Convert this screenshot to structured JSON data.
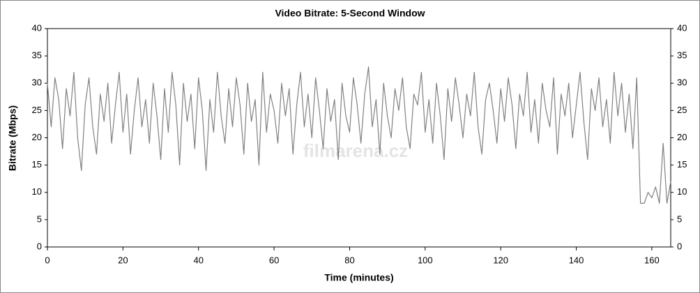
{
  "chart_data": {
    "type": "line",
    "title": "Video Bitrate: 5-Second Window",
    "x_label": "Time (minutes)",
    "y_label": "Bitrate (Mbps)",
    "watermark": "filmarena.cz",
    "xlim": [
      0,
      165
    ],
    "xticks": [
      0,
      20,
      40,
      60,
      80,
      100,
      120,
      140,
      160
    ],
    "ylim": [
      0,
      40
    ],
    "yticks": [
      0,
      5,
      10,
      15,
      20,
      25,
      30,
      35,
      40
    ],
    "grid": false,
    "x": [
      0,
      1,
      2,
      3,
      4,
      5,
      6,
      7,
      8,
      9,
      10,
      11,
      12,
      13,
      14,
      15,
      16,
      17,
      18,
      19,
      20,
      21,
      22,
      23,
      24,
      25,
      26,
      27,
      28,
      29,
      30,
      31,
      32,
      33,
      34,
      35,
      36,
      37,
      38,
      39,
      40,
      41,
      42,
      43,
      44,
      45,
      46,
      47,
      48,
      49,
      50,
      51,
      52,
      53,
      54,
      55,
      56,
      57,
      58,
      59,
      60,
      61,
      62,
      63,
      64,
      65,
      66,
      67,
      68,
      69,
      70,
      71,
      72,
      73,
      74,
      75,
      76,
      77,
      78,
      79,
      80,
      81,
      82,
      83,
      84,
      85,
      86,
      87,
      88,
      89,
      90,
      91,
      92,
      93,
      94,
      95,
      96,
      97,
      98,
      99,
      100,
      101,
      102,
      103,
      104,
      105,
      106,
      107,
      108,
      109,
      110,
      111,
      112,
      113,
      114,
      115,
      116,
      117,
      118,
      119,
      120,
      121,
      122,
      123,
      124,
      125,
      126,
      127,
      128,
      129,
      130,
      131,
      132,
      133,
      134,
      135,
      136,
      137,
      138,
      139,
      140,
      141,
      142,
      143,
      144,
      145,
      146,
      147,
      148,
      149,
      150,
      151,
      152,
      153,
      154,
      155,
      156,
      157,
      158,
      159,
      160,
      161,
      162,
      163,
      164,
      165
    ],
    "series": [
      {
        "color": "#808080",
        "values": [
          30,
          22,
          31,
          27,
          18,
          29,
          24,
          32,
          20,
          14,
          26,
          31,
          22,
          17,
          28,
          23,
          30,
          19,
          26,
          32,
          21,
          28,
          17,
          25,
          31,
          22,
          27,
          19,
          30,
          24,
          16,
          29,
          21,
          32,
          26,
          15,
          30,
          23,
          28,
          18,
          31,
          25,
          14,
          27,
          21,
          32,
          24,
          19,
          29,
          22,
          31,
          26,
          17,
          30,
          23,
          27,
          15,
          32,
          21,
          28,
          25,
          19,
          30,
          24,
          29,
          17,
          26,
          32,
          22,
          28,
          20,
          31,
          25,
          18,
          29,
          23,
          27,
          16,
          30,
          24,
          21,
          31,
          26,
          19,
          28,
          33,
          22,
          27,
          17,
          30,
          24,
          20,
          29,
          25,
          31,
          22,
          18,
          28,
          26,
          32,
          21,
          27,
          19,
          30,
          24,
          16,
          29,
          23,
          31,
          26,
          20,
          28,
          24,
          32,
          22,
          17,
          27,
          30,
          25,
          19,
          29,
          23,
          31,
          26,
          18,
          28,
          24,
          32,
          21,
          27,
          19,
          30,
          25,
          22,
          31,
          17,
          28,
          24,
          30,
          20,
          26,
          32,
          23,
          16,
          29,
          25,
          31,
          22,
          27,
          19,
          32,
          24,
          30,
          21,
          28,
          18,
          31,
          8,
          8,
          10,
          9,
          11,
          8,
          19,
          8,
          12
        ]
      }
    ]
  }
}
